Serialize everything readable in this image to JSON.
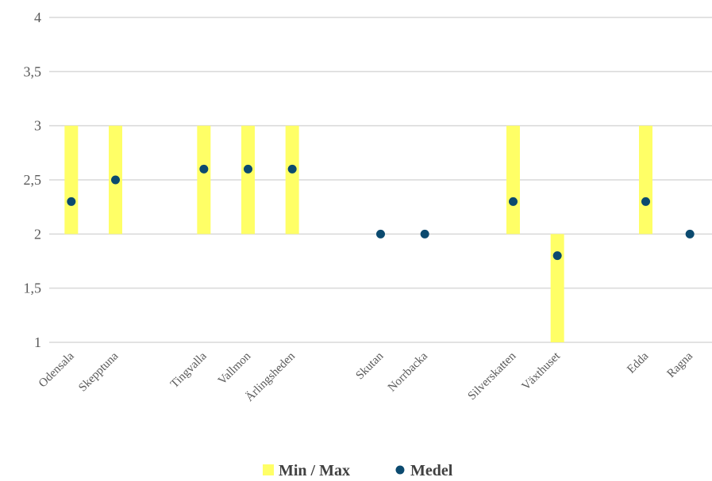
{
  "chart_data": {
    "type": "bar",
    "categories": [
      "Odensala",
      "Skepptuna",
      "",
      "Tingvalla",
      "Vallmon",
      "Ärlingsheden",
      "",
      "Skutan",
      "Norrbacka",
      "",
      "Silverskatten",
      "Växthuset",
      "",
      "Edda",
      "Ragna"
    ],
    "series": [
      {
        "name": "Min / Max",
        "kind": "floating-bar",
        "min": [
          2,
          2,
          null,
          2,
          2,
          2,
          null,
          null,
          null,
          null,
          2,
          1,
          null,
          2,
          null
        ],
        "max": [
          3,
          3,
          null,
          3,
          3,
          3,
          null,
          null,
          null,
          null,
          3,
          2,
          null,
          3,
          null
        ]
      },
      {
        "name": "Medel",
        "kind": "point",
        "values": [
          2.3,
          2.5,
          null,
          2.6,
          2.6,
          2.6,
          null,
          2,
          2,
          null,
          2.3,
          1.8,
          null,
          2.3,
          2
        ]
      }
    ],
    "ylim": [
      1,
      4
    ],
    "yticks": [
      "1",
      "1,5",
      "2",
      "2,5",
      "3",
      "3,5",
      "4"
    ],
    "ytick_values": [
      1,
      1.5,
      2,
      2.5,
      3,
      3.5,
      4
    ],
    "grid": true,
    "legend_position": "bottom",
    "colors": {
      "bar": "#FFFF66",
      "point": "#0B4A6F",
      "grid": "#D9D9D9",
      "text": "#595959"
    }
  }
}
